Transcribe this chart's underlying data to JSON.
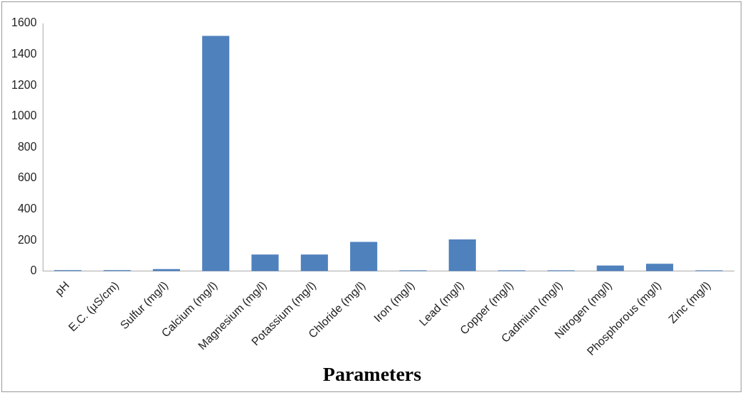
{
  "chart_data": {
    "type": "bar",
    "xlabel": "Parameters",
    "categories": [
      "pH",
      "E.C. (µS/cm)",
      "Sulfur (mg/l)",
      "Calcium (mg/l)",
      "Magnesium (mg/l)",
      "Potassium (mg/l)",
      "Chloride (mg/l)",
      "Iron (mg/l)",
      "Lead (mg/l)",
      "Copper (mg/l)",
      "Cadmium (mg/l)",
      "Nitrogen (mg/l)",
      "Phosphorous (mg/l)",
      "Zinc (mg/l)"
    ],
    "values": [
      7,
      7,
      13,
      1520,
      108,
      108,
      189,
      6,
      205,
      6,
      6,
      37,
      48,
      6
    ],
    "color": "#4f81bd",
    "ylim": [
      0,
      1600
    ],
    "yticks": [
      0,
      200,
      400,
      600,
      800,
      1000,
      1200,
      1400,
      1600
    ],
    "grid": false,
    "legend": false
  }
}
